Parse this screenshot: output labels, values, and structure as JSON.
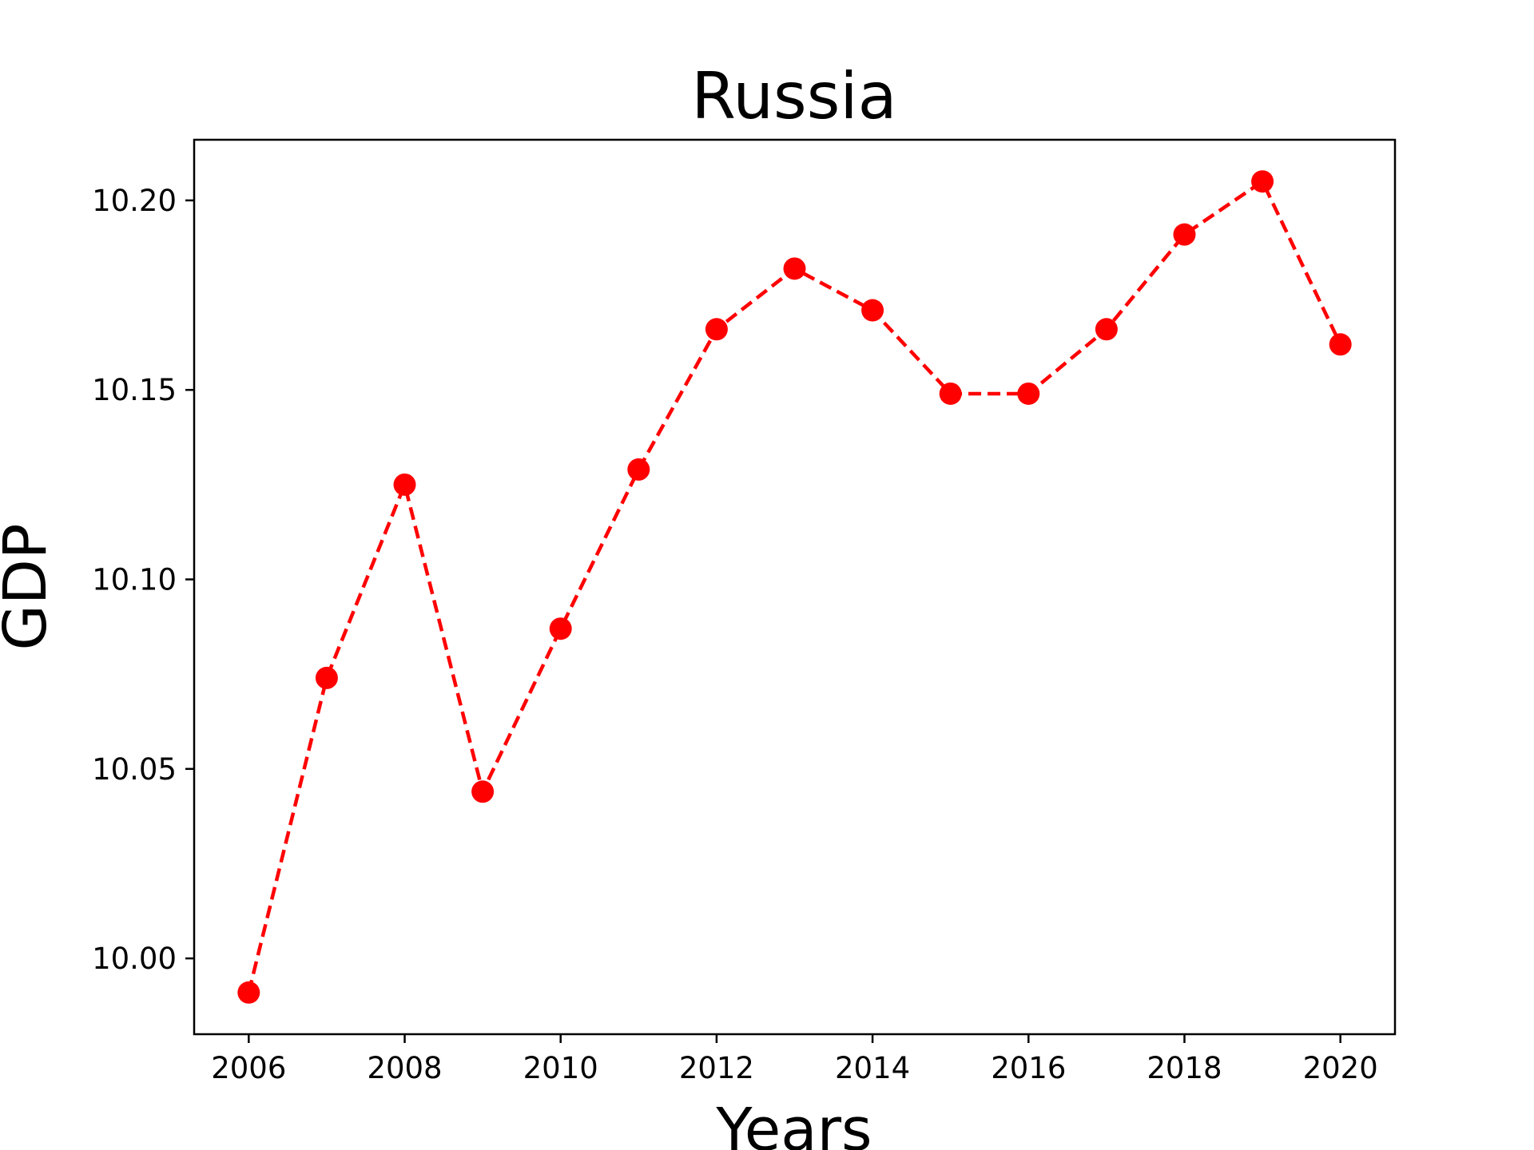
{
  "chart_data": {
    "type": "line",
    "title": "Russia",
    "xlabel": "Years",
    "ylabel": "GDP",
    "x": [
      2006,
      2007,
      2008,
      2009,
      2010,
      2011,
      2012,
      2013,
      2014,
      2015,
      2016,
      2017,
      2018,
      2019,
      2020
    ],
    "series": [
      {
        "values": [
          9.991,
          10.074,
          10.125,
          10.044,
          10.087,
          10.129,
          10.166,
          10.182,
          10.171,
          10.149,
          10.149,
          10.166,
          10.191,
          10.205,
          10.162
        ],
        "color": "#ff0000",
        "line_style": "dashed",
        "marker": "circle"
      }
    ],
    "xlim": [
      2005.3,
      2020.7
    ],
    "ylim": [
      9.98,
      10.216
    ],
    "xticks": [
      2006,
      2008,
      2010,
      2012,
      2014,
      2016,
      2018,
      2020
    ],
    "xtick_labels": [
      "2006",
      "2008",
      "2010",
      "2012",
      "2014",
      "2016",
      "2018",
      "2020"
    ],
    "yticks": [
      10.0,
      10.05,
      10.1,
      10.15,
      10.2
    ],
    "ytick_labels": [
      "10.00",
      "10.05",
      "10.10",
      "10.15",
      "10.20"
    ],
    "grid": false,
    "legend": "none"
  }
}
